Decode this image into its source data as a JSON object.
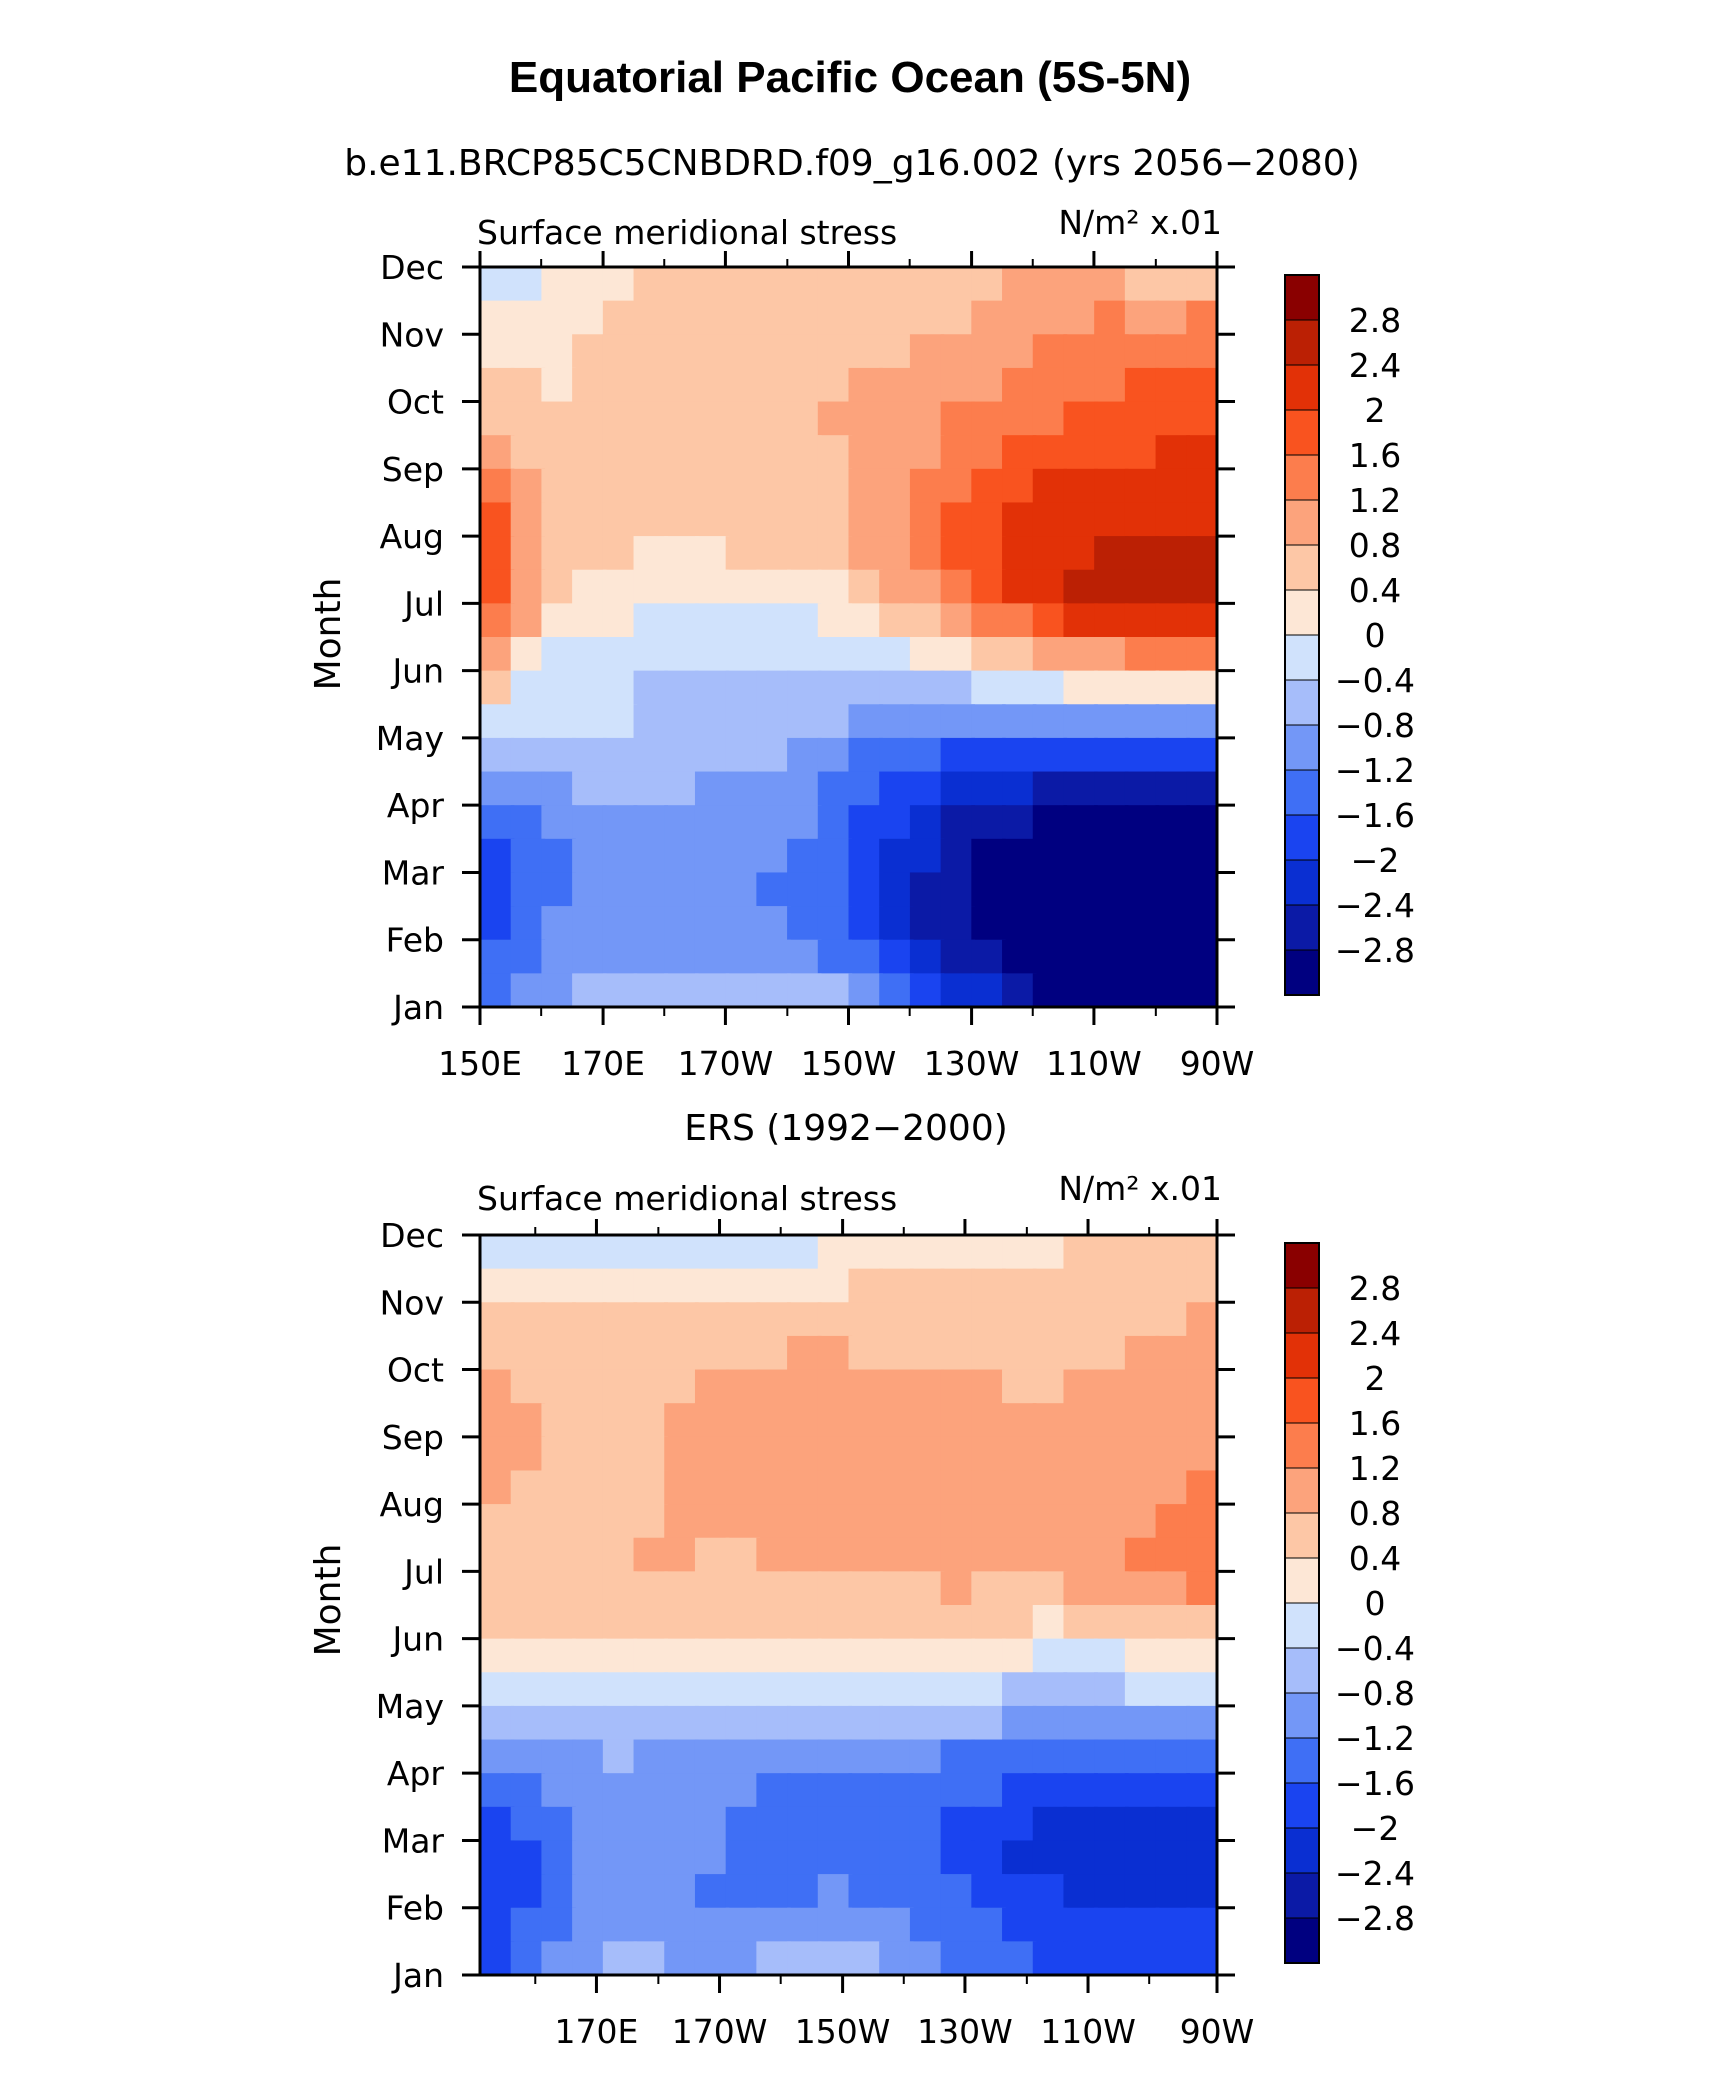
{
  "figure": {
    "title": "Equatorial Pacific Ocean (5S-5N)"
  },
  "colorbar": {
    "colors": [
      "#000080",
      "#0b1aa6",
      "#0a2fd2",
      "#1a44f0",
      "#3f6ff5",
      "#7397f7",
      "#a6bdfa",
      "#d0e2fc",
      "#fde7d6",
      "#fdc7a6",
      "#fca37c",
      "#fc7d4d",
      "#f9531f",
      "#e23107",
      "#bb2004",
      "#8a0000"
    ],
    "labels": [
      "2.8",
      "2.4",
      "2",
      "1.6",
      "1.2",
      "0.8",
      "0.4",
      "0",
      "−0.4",
      "−0.8",
      "−1.2",
      "−1.6",
      "−2",
      "−2.4",
      "−2.8"
    ]
  },
  "chart_data": [
    {
      "type": "heatmap",
      "title": "b.e11.BRCP85C5CNBDRD.f09_g16.002 (yrs 2056−2080)",
      "left_label": "Surface meridional stress",
      "units": "N/m² x.01",
      "ylabel": "Month",
      "xlabel": "",
      "x_tick_labels": [
        "150E",
        "170E",
        "170W",
        "150W",
        "130W",
        "110W",
        "90W"
      ],
      "y_tick_labels": [
        "Jan",
        "Feb",
        "Mar",
        "Apr",
        "May",
        "Jun",
        "Jul",
        "Aug",
        "Sep",
        "Oct",
        "Nov",
        "Dec"
      ],
      "levels": [
        -2.8,
        -2.4,
        -2,
        -1.6,
        -1.2,
        -0.8,
        -0.4,
        0,
        0.4,
        0.8,
        1.2,
        1.6,
        2,
        2.4,
        2.8
      ],
      "x_longitudes": [
        150,
        160,
        170,
        180,
        190,
        200,
        210,
        220,
        230,
        240,
        250,
        260,
        270
      ],
      "values": [
        [
          -1.5,
          -1.0,
          -0.6,
          -0.4,
          -0.3,
          -0.3,
          -0.6,
          -1.3,
          -2.0,
          -2.7,
          -3.0,
          -3.1,
          -3.0
        ],
        [
          -1.8,
          -1.2,
          -1.0,
          -1.0,
          -1.0,
          -1.2,
          -1.6,
          -2.3,
          -2.9,
          -3.2,
          -3.3,
          -3.3,
          -3.2
        ],
        [
          -1.9,
          -1.4,
          -1.2,
          -1.2,
          -1.2,
          -1.3,
          -1.7,
          -2.3,
          -2.9,
          -3.1,
          -3.2,
          -3.2,
          -3.1
        ],
        [
          -1.4,
          -1.0,
          -0.9,
          -0.8,
          -0.9,
          -1.0,
          -1.4,
          -2.0,
          -2.5,
          -2.7,
          -2.8,
          -2.8,
          -2.7
        ],
        [
          -0.5,
          -0.4,
          -0.4,
          -0.5,
          -0.6,
          -0.7,
          -1.0,
          -1.4,
          -1.5,
          -1.5,
          -1.5,
          -1.5,
          -1.5
        ],
        [
          1.0,
          -0.2,
          -0.3,
          -0.4,
          -0.4,
          -0.5,
          -0.4,
          -0.3,
          0.0,
          0.3,
          0.6,
          0.8,
          0.8
        ],
        [
          2.2,
          0.7,
          0.2,
          0.0,
          0.0,
          0.1,
          0.3,
          0.8,
          1.5,
          2.2,
          2.6,
          2.8,
          2.7
        ],
        [
          2.1,
          0.8,
          0.5,
          0.5,
          0.5,
          0.6,
          0.8,
          1.4,
          1.9,
          2.2,
          2.3,
          2.4,
          2.4
        ],
        [
          1.3,
          0.6,
          0.5,
          0.5,
          0.5,
          0.6,
          0.8,
          1.1,
          1.6,
          1.9,
          2.0,
          2.1,
          2.1
        ],
        [
          0.7,
          0.4,
          0.5,
          0.5,
          0.5,
          0.7,
          0.9,
          1.0,
          1.2,
          1.4,
          1.6,
          1.8,
          1.9
        ],
        [
          0.2,
          0.2,
          0.5,
          0.5,
          0.5,
          0.5,
          0.6,
          0.7,
          0.9,
          1.1,
          1.3,
          1.4,
          1.5
        ],
        [
          -0.6,
          0.1,
          0.3,
          0.4,
          0.4,
          0.4,
          0.5,
          0.5,
          0.6,
          0.8,
          1.0,
          0.4,
          0.5
        ]
      ]
    },
    {
      "type": "heatmap",
      "title": "ERS (1992−2000)",
      "left_label": "Surface meridional stress",
      "units": "N/m² x.01",
      "ylabel": "Month",
      "xlabel": "",
      "x_tick_labels": [
        "170E",
        "170W",
        "150W",
        "130W",
        "110W",
        "90W"
      ],
      "y_tick_labels": [
        "Jan",
        "Feb",
        "Mar",
        "Apr",
        "May",
        "Jun",
        "Jul",
        "Aug",
        "Sep",
        "Oct",
        "Nov",
        "Dec"
      ],
      "levels": [
        -2.8,
        -2.4,
        -2,
        -1.6,
        -1.2,
        -0.8,
        -0.4,
        0,
        0.4,
        0.8,
        1.2,
        1.6,
        2,
        2.4,
        2.8
      ],
      "x_longitudes": [
        150,
        160,
        170,
        180,
        190,
        200,
        210,
        220,
        230,
        240,
        250,
        260,
        270
      ],
      "values": [
        [
          -1.8,
          -1.1,
          -0.6,
          -0.7,
          -0.8,
          -0.6,
          -0.6,
          -0.8,
          -1.2,
          -1.5,
          -1.6,
          -1.8,
          -1.6
        ],
        [
          -2.0,
          -1.5,
          -1.0,
          -1.2,
          -1.3,
          -1.2,
          -1.1,
          -1.4,
          -1.6,
          -1.9,
          -2.0,
          -2.1,
          -2.0
        ],
        [
          -2.1,
          -1.6,
          -1.0,
          -1.1,
          -1.2,
          -1.3,
          -1.3,
          -1.6,
          -1.7,
          -2.2,
          -2.3,
          -2.4,
          -2.2
        ],
        [
          -1.4,
          -1.1,
          -0.9,
          -1.0,
          -1.1,
          -1.3,
          -1.2,
          -1.4,
          -1.5,
          -1.6,
          -1.5,
          -1.6,
          -1.4
        ],
        [
          -0.3,
          -0.4,
          -0.4,
          -0.4,
          -0.5,
          -0.5,
          -0.4,
          -0.5,
          -0.5,
          -0.7,
          -0.8,
          -0.6,
          -0.7
        ],
        [
          0.5,
          0.4,
          0.5,
          0.4,
          0.3,
          0.4,
          0.4,
          0.3,
          0.3,
          0.2,
          0.2,
          0.4,
          0.5
        ],
        [
          0.8,
          0.8,
          0.7,
          0.9,
          0.7,
          0.9,
          0.8,
          0.9,
          1.0,
          0.9,
          1.2,
          1.3,
          1.5
        ],
        [
          0.8,
          0.7,
          0.7,
          0.8,
          0.9,
          1.0,
          1.0,
          1.0,
          1.0,
          0.9,
          1.0,
          1.2,
          1.3
        ],
        [
          1.4,
          0.8,
          0.6,
          0.8,
          0.9,
          1.0,
          1.0,
          1.0,
          1.0,
          0.8,
          0.9,
          1.0,
          1.2
        ],
        [
          0.9,
          0.7,
          0.6,
          0.7,
          0.8,
          0.9,
          0.9,
          0.8,
          0.9,
          0.7,
          0.8,
          0.9,
          1.0
        ],
        [
          0.3,
          0.4,
          0.5,
          0.4,
          0.4,
          0.5,
          0.5,
          0.5,
          0.5,
          0.5,
          0.7,
          0.7,
          0.8
        ],
        [
          -0.1,
          -0.3,
          -0.2,
          -0.3,
          -0.2,
          -0.3,
          0.1,
          0.2,
          0.3,
          0.2,
          0.4,
          0.4,
          0.3
        ]
      ]
    }
  ]
}
